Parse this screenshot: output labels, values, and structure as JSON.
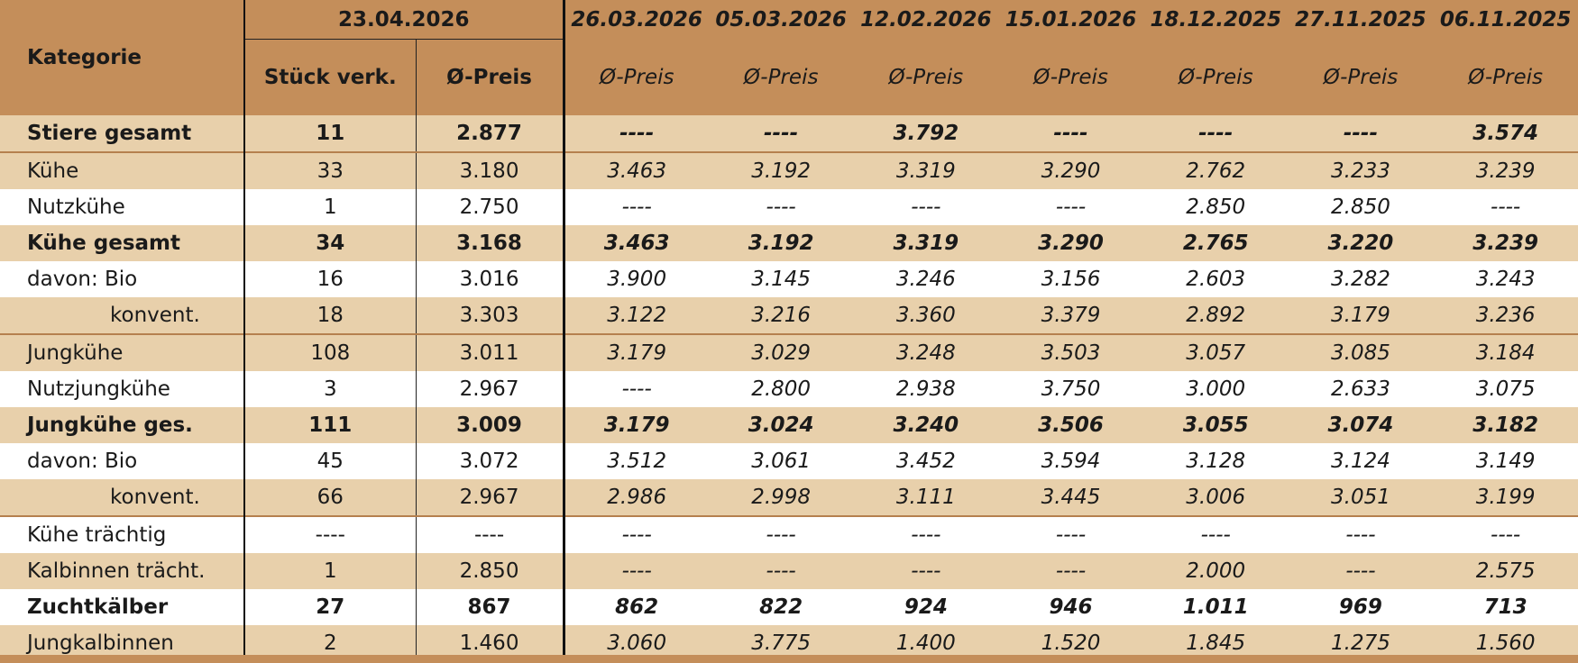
{
  "header": {
    "category": "Kategorie",
    "current_date": "23.04.2026",
    "count": "Stück verk.",
    "price": "Ø-Preis",
    "history": [
      {
        "date": "26.03.2026",
        "price": "Ø-Preis"
      },
      {
        "date": "05.03.2026",
        "price": "Ø-Preis"
      },
      {
        "date": "12.02.2026",
        "price": "Ø-Preis"
      },
      {
        "date": "15.01.2026",
        "price": "Ø-Preis"
      },
      {
        "date": "18.12.2025",
        "price": "Ø-Preis"
      },
      {
        "date": "27.11.2025",
        "price": "Ø-Preis"
      },
      {
        "date": "06.11.2025",
        "price": "Ø-Preis"
      }
    ]
  },
  "rows": [
    {
      "label": "Stiere gesamt",
      "count": "11",
      "price": "2.877",
      "history": [
        "----",
        "----",
        "3.792",
        "----",
        "----",
        "----",
        "3.574"
      ]
    },
    {
      "label": "Kühe",
      "count": "33",
      "price": "3.180",
      "history": [
        "3.463",
        "3.192",
        "3.319",
        "3.290",
        "2.762",
        "3.233",
        "3.239"
      ]
    },
    {
      "label": "Nutzkühe",
      "count": "1",
      "price": "2.750",
      "history": [
        "----",
        "----",
        "----",
        "----",
        "2.850",
        "2.850",
        "----"
      ]
    },
    {
      "label": "Kühe gesamt",
      "count": "34",
      "price": "3.168",
      "history": [
        "3.463",
        "3.192",
        "3.319",
        "3.290",
        "2.765",
        "3.220",
        "3.239"
      ]
    },
    {
      "label": "davon: Bio",
      "count": "16",
      "price": "3.016",
      "history": [
        "3.900",
        "3.145",
        "3.246",
        "3.156",
        "2.603",
        "3.282",
        "3.243"
      ]
    },
    {
      "label": "konvent.",
      "count": "18",
      "price": "3.303",
      "history": [
        "3.122",
        "3.216",
        "3.360",
        "3.379",
        "2.892",
        "3.179",
        "3.236"
      ]
    },
    {
      "label": "Jungkühe",
      "count": "108",
      "price": "3.011",
      "history": [
        "3.179",
        "3.029",
        "3.248",
        "3.503",
        "3.057",
        "3.085",
        "3.184"
      ]
    },
    {
      "label": "Nutzjungkühe",
      "count": "3",
      "price": "2.967",
      "history": [
        "----",
        "2.800",
        "2.938",
        "3.750",
        "3.000",
        "2.633",
        "3.075"
      ]
    },
    {
      "label": "Jungkühe ges.",
      "count": "111",
      "price": "3.009",
      "history": [
        "3.179",
        "3.024",
        "3.240",
        "3.506",
        "3.055",
        "3.074",
        "3.182"
      ]
    },
    {
      "label": "davon: Bio",
      "count": "45",
      "price": "3.072",
      "history": [
        "3.512",
        "3.061",
        "3.452",
        "3.594",
        "3.128",
        "3.124",
        "3.149"
      ]
    },
    {
      "label": "konvent.",
      "count": "66",
      "price": "2.967",
      "history": [
        "2.986",
        "2.998",
        "3.111",
        "3.445",
        "3.006",
        "3.051",
        "3.199"
      ]
    },
    {
      "label": "Kühe trächtig",
      "count": "----",
      "price": "----",
      "history": [
        "----",
        "----",
        "----",
        "----",
        "----",
        "----",
        "----"
      ]
    },
    {
      "label": "Kalbinnen trächt.",
      "count": "1",
      "price": "2.850",
      "history": [
        "----",
        "----",
        "----",
        "----",
        "2.000",
        "----",
        "2.575"
      ]
    },
    {
      "label": "Zuchtkälber",
      "count": "27",
      "price": "867",
      "history": [
        "862",
        "822",
        "924",
        "946",
        "1.011",
        "969",
        "713"
      ]
    },
    {
      "label": "Jungkalbinnen",
      "count": "2",
      "price": "1.460",
      "history": [
        "3.060",
        "3.775",
        "1.400",
        "1.520",
        "1.845",
        "1.275",
        "1.560"
      ]
    }
  ]
}
